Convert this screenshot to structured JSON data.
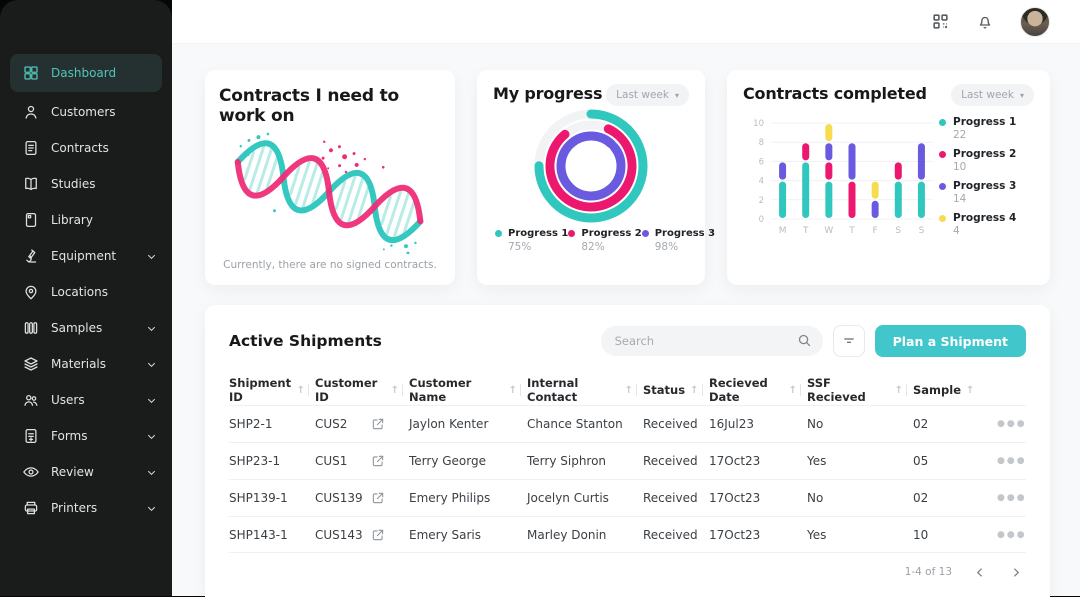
{
  "sidebar": {
    "items": [
      {
        "label": "Dashboard",
        "icon": "dashboard-grid-icon",
        "active": true,
        "expandable": false
      },
      {
        "label": "Customers",
        "icon": "person-icon",
        "active": false,
        "expandable": false
      },
      {
        "label": "Contracts",
        "icon": "document-icon",
        "active": false,
        "expandable": false
      },
      {
        "label": "Studies",
        "icon": "open-book-icon",
        "active": false,
        "expandable": false
      },
      {
        "label": "Library",
        "icon": "book-icon",
        "active": false,
        "expandable": false
      },
      {
        "label": "Equipment",
        "icon": "microscope-icon",
        "active": false,
        "expandable": true
      },
      {
        "label": "Locations",
        "icon": "map-pin-icon",
        "active": false,
        "expandable": false
      },
      {
        "label": "Samples",
        "icon": "test-tubes-icon",
        "active": false,
        "expandable": true
      },
      {
        "label": "Materials",
        "icon": "layers-icon",
        "active": false,
        "expandable": true
      },
      {
        "label": "Users",
        "icon": "people-icon",
        "active": false,
        "expandable": true
      },
      {
        "label": "Forms",
        "icon": "form-icon",
        "active": false,
        "expandable": true
      },
      {
        "label": "Review",
        "icon": "eye-icon",
        "active": false,
        "expandable": true
      },
      {
        "label": "Printers",
        "icon": "printer-icon",
        "active": false,
        "expandable": true
      }
    ]
  },
  "header": {
    "icons": [
      "apps-grid-icon",
      "bell-icon"
    ],
    "avatar": "user-avatar"
  },
  "cards": {
    "contracts_todo": {
      "title": "Contracts I need to work on",
      "empty_message": "Currently, there are no signed contracts.",
      "illustration": "dna-helix"
    },
    "my_progress": {
      "title": "My progress",
      "period": "Last week"
    },
    "contracts_completed": {
      "title": "Contracts completed",
      "period": "Last week"
    }
  },
  "chart_data": [
    {
      "type": "donut",
      "card": "My progress",
      "series": [
        {
          "name": "Progress 1",
          "value_pct": 75,
          "color": "#2fc7be"
        },
        {
          "name": "Progress 2",
          "value_pct": 82,
          "color": "#ec176e"
        },
        {
          "name": "Progress 3",
          "value_pct": 98,
          "color": "#6a5ae0"
        }
      ],
      "legend_position": "bottom"
    },
    {
      "type": "bar",
      "subtype": "stacked",
      "card": "Contracts completed",
      "categories": [
        "M",
        "T",
        "W",
        "T",
        "F",
        "S",
        "S"
      ],
      "series": [
        {
          "name": "Progress 1",
          "color": "#2fc7be",
          "total": 22,
          "values": [
            4,
            6,
            4,
            0,
            0,
            4,
            4
          ]
        },
        {
          "name": "Progress 2",
          "color": "#ec176e",
          "total": 10,
          "values": [
            0,
            2,
            2,
            4,
            0,
            2,
            0
          ]
        },
        {
          "name": "Progress 3",
          "color": "#6a5ae0",
          "total": 14,
          "values": [
            2,
            0,
            2,
            4,
            2,
            0,
            4
          ]
        },
        {
          "name": "Progress 4",
          "color": "#f6dc4e",
          "total": 4,
          "values": [
            0,
            0,
            2,
            0,
            2,
            0,
            0
          ]
        }
      ],
      "ylim": [
        0,
        10
      ],
      "yticks": [
        0,
        2,
        4,
        6,
        8,
        10
      ],
      "grid": true,
      "legend_position": "right"
    }
  ],
  "shipments": {
    "title": "Active Shipments",
    "search_placeholder": "Search",
    "plan_button_label": "Plan a Shipment",
    "columns": [
      "Shipment ID",
      "Customer ID",
      "Customer Name",
      "Internal Contact",
      "Status",
      "Recieved Date",
      "SSF Recieved",
      "Sample"
    ],
    "rows": [
      {
        "shipment_id": "SHP2-1",
        "customer_id": "CUS2",
        "customer_name": "Jaylon Kenter",
        "internal_contact": "Chance Stanton",
        "status": "Received",
        "received_date": "16Jul23",
        "ssf_received": "No",
        "sample": "02"
      },
      {
        "shipment_id": "SHP23-1",
        "customer_id": "CUS1",
        "customer_name": "Terry George",
        "internal_contact": "Terry Siphron",
        "status": "Received",
        "received_date": "17Oct23",
        "ssf_received": "Yes",
        "sample": "05"
      },
      {
        "shipment_id": "SHP139-1",
        "customer_id": "CUS139",
        "customer_name": "Emery Philips",
        "internal_contact": "Jocelyn Curtis",
        "status": "Received",
        "received_date": "17Oct23",
        "ssf_received": "No",
        "sample": "02"
      },
      {
        "shipment_id": "SHP143-1",
        "customer_id": "CUS143",
        "customer_name": "Emery Saris",
        "internal_contact": "Marley Donin",
        "status": "Received",
        "received_date": "17Oct23",
        "ssf_received": "Yes",
        "sample": "10"
      }
    ],
    "pagination": {
      "range_label": "1-4 of 13"
    }
  },
  "colors": {
    "accent_teal": "#41c6cb",
    "chart_teal": "#2fc7be",
    "chart_pink": "#ec176e",
    "chart_purple": "#6a5ae0",
    "chart_yellow": "#f6dc4e",
    "sidebar_bg": "#191c1b",
    "sidebar_active_bg": "#253130",
    "sidebar_active_text": "#53c4b8"
  }
}
